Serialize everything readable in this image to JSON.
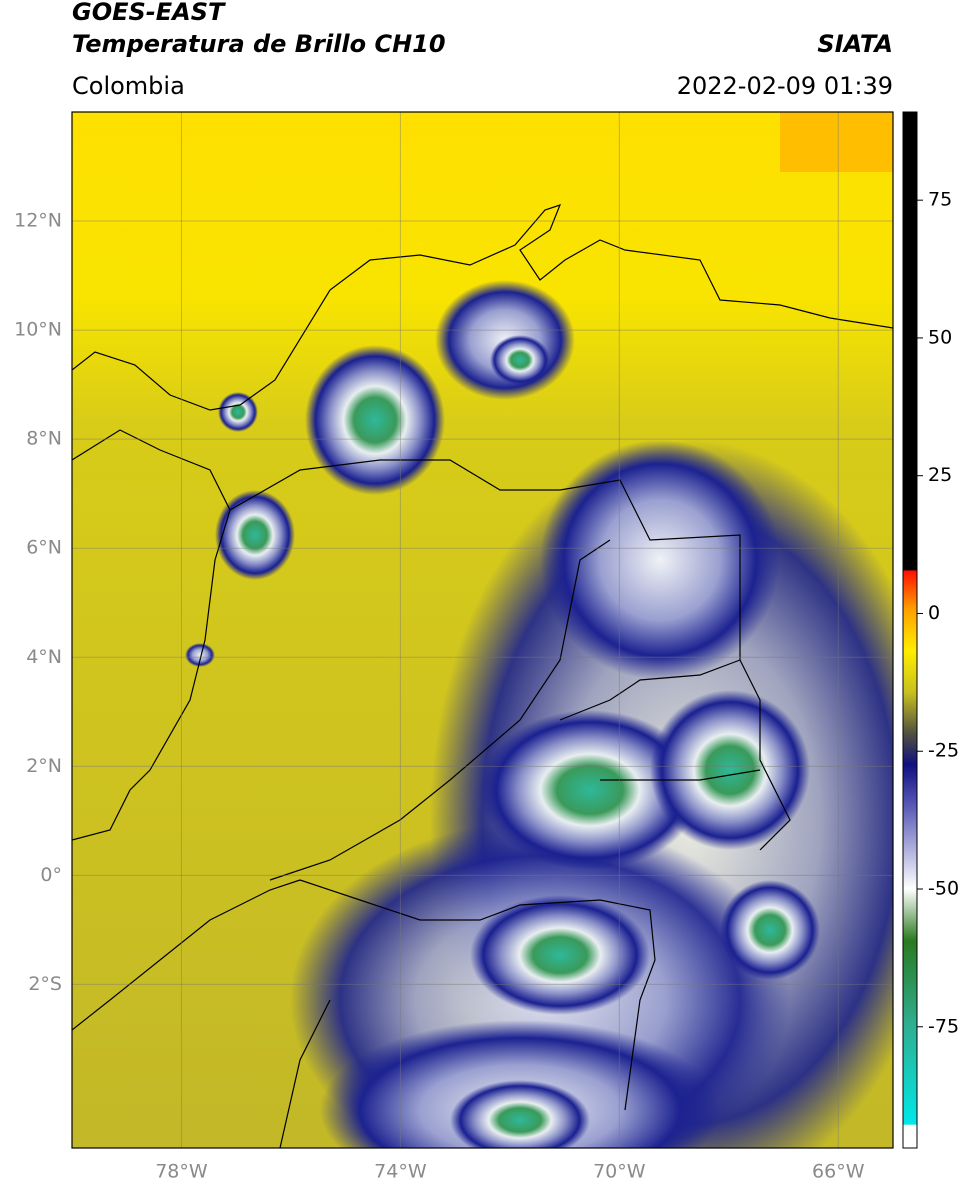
{
  "header": {
    "title": "GOES-EAST",
    "subtitle": "Temperatura de Brillo CH10",
    "region": "Colombia",
    "source": "SIATA",
    "datetime": "2022-02-09 01:39"
  },
  "map": {
    "xlim": [
      -80,
      -65
    ],
    "ylim": [
      -5,
      14
    ],
    "xticks": [
      {
        "value": -78,
        "label": "78°W"
      },
      {
        "value": -74,
        "label": "74°W"
      },
      {
        "value": -70,
        "label": "70°W"
      },
      {
        "value": -66,
        "label": "66°W"
      }
    ],
    "yticks": [
      {
        "value": 12,
        "label": "12°N"
      },
      {
        "value": 10,
        "label": "10°N"
      },
      {
        "value": 8,
        "label": "8°N"
      },
      {
        "value": 6,
        "label": "6°N"
      },
      {
        "value": 4,
        "label": "4°N"
      },
      {
        "value": 2,
        "label": "2°N"
      },
      {
        "value": 0,
        "label": "0°"
      },
      {
        "value": -2,
        "label": "2°S"
      }
    ],
    "grid": true
  },
  "colorbar": {
    "lim": [
      -97,
      91
    ],
    "ticks": [
      75,
      50,
      25,
      0,
      -25,
      -50,
      -75
    ]
  }
}
